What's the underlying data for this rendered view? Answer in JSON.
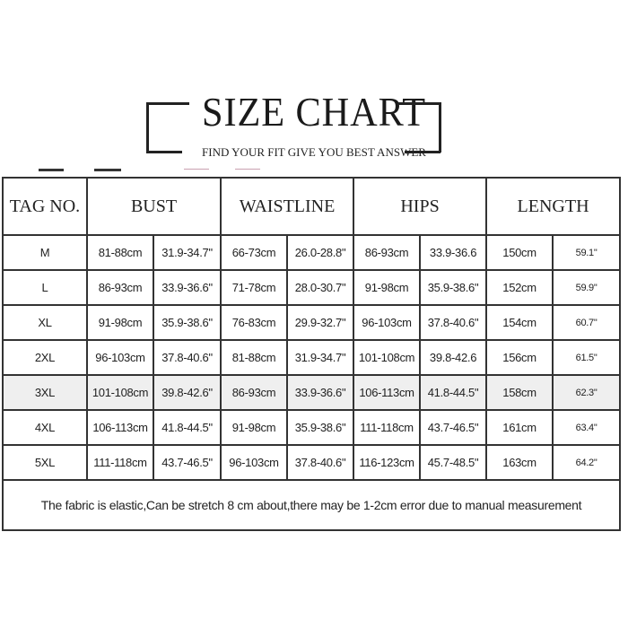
{
  "title": "SIZE CHART",
  "subtitle": "FIND YOUR FIT GIVE YOU BEST ANSWER",
  "headers": [
    "TAG NO.",
    "BUST",
    "WAISTLINE",
    "HIPS",
    "LENGTH"
  ],
  "rows": [
    {
      "tag": "M",
      "cells": [
        "81-88cm",
        "31.9-34.7\"",
        "66-73cm",
        "26.0-28.8\"",
        "86-93cm",
        "33.9-36.6",
        "150cm",
        "59.1\""
      ]
    },
    {
      "tag": "L",
      "cells": [
        "86-93cm",
        "33.9-36.6\"",
        "71-78cm",
        "28.0-30.7\"",
        "91-98cm",
        "35.9-38.6\"",
        "152cm",
        "59.9\""
      ]
    },
    {
      "tag": "XL",
      "cells": [
        "91-98cm",
        "35.9-38.6\"",
        "76-83cm",
        "29.9-32.7\"",
        "96-103cm",
        "37.8-40.6\"",
        "154cm",
        "60.7\""
      ]
    },
    {
      "tag": "2XL",
      "cells": [
        "96-103cm",
        "37.8-40.6\"",
        "81-88cm",
        "31.9-34.7\"",
        "101-108cm",
        "39.8-42.6",
        "156cm",
        "61.5\""
      ]
    },
    {
      "tag": "3XL",
      "cells": [
        "101-108cm",
        "39.8-42.6\"",
        "86-93cm",
        "33.9-36.6\"",
        "106-113cm",
        "41.8-44.5\"",
        "158cm",
        "62.3\""
      ]
    },
    {
      "tag": "4XL",
      "cells": [
        "106-113cm",
        "41.8-44.5\"",
        "91-98cm",
        "35.9-38.6\"",
        "111-118cm",
        "43.7-46.5\"",
        "161cm",
        "63.4\""
      ]
    },
    {
      "tag": "5XL",
      "cells": [
        "111-118cm",
        "43.7-46.5\"",
        "96-103cm",
        "37.8-40.6\"",
        "116-123cm",
        "45.7-48.5\"",
        "163cm",
        "64.2\""
      ]
    }
  ],
  "highlighted_row": "3XL",
  "footnote": "The fabric is elastic,Can be stretch 8 cm about,there may be 1-2cm error due to manual measurement",
  "colors": {
    "border": "#333333",
    "highlight_row": "#efefef",
    "text": "#222222"
  }
}
